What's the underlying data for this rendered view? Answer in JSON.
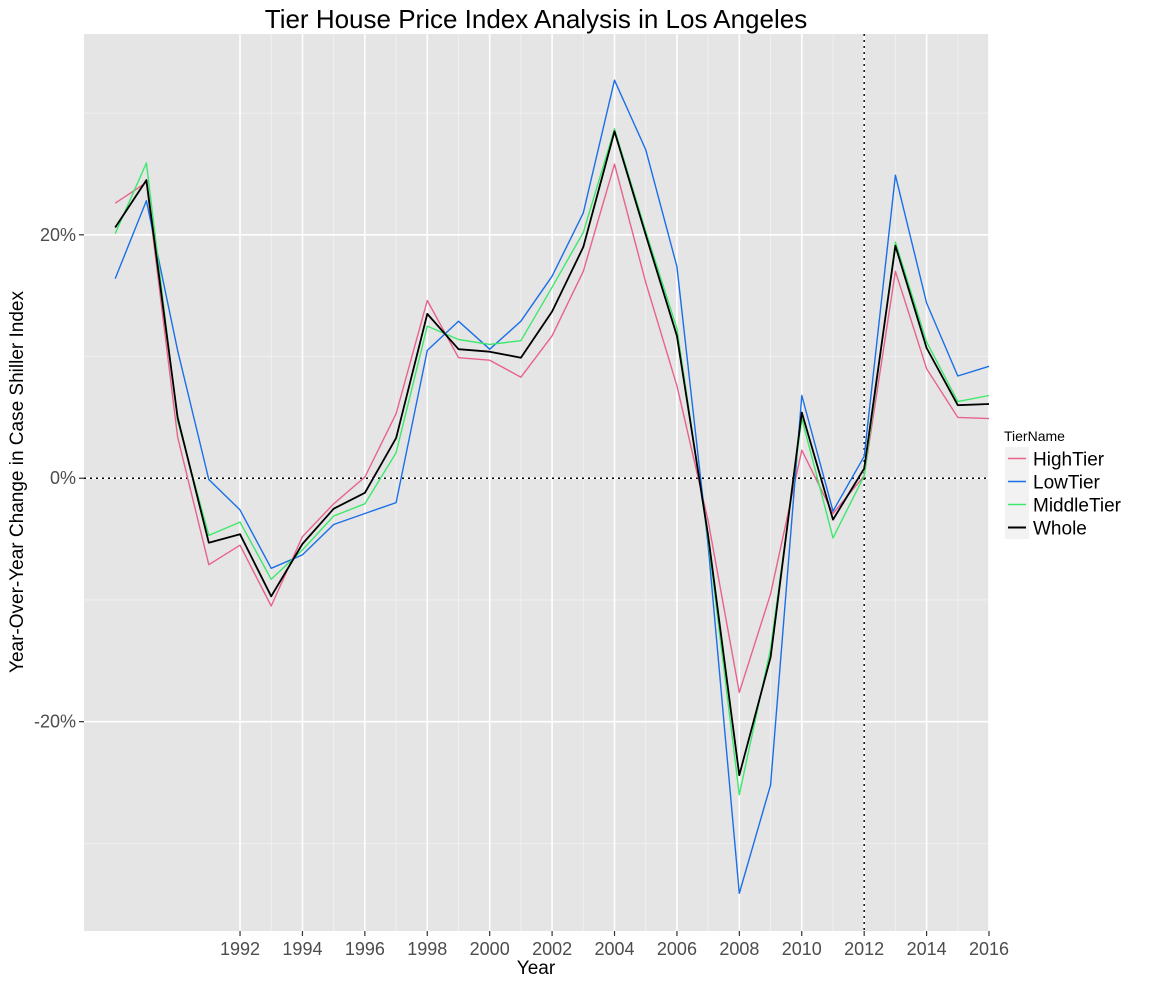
{
  "chart_data": {
    "type": "line",
    "title": "Tier House Price Index Analysis in  Los Angeles",
    "xlabel": "Year",
    "ylabel": "Year-Over-Year Change in Case Shiller Index",
    "x": [
      1988,
      1989,
      1990,
      1991,
      1992,
      1993,
      1994,
      1995,
      1996,
      1997,
      1998,
      1999,
      2000,
      2001,
      2002,
      2003,
      2004,
      2005,
      2006,
      2007,
      2008,
      2009,
      2010,
      2011,
      2012,
      2013,
      2014,
      2015,
      2016
    ],
    "xlim": [
      1987,
      2016
    ],
    "ylim": [
      -37.2,
      36.5
    ],
    "x_ticks": [
      1992,
      1994,
      1996,
      1998,
      2000,
      2002,
      2004,
      2006,
      2008,
      2010,
      2012,
      2014,
      2016
    ],
    "y_ticks": [
      -20,
      0,
      20
    ],
    "y_tick_labels": [
      "-20%",
      "0%",
      "20%"
    ],
    "reference_lines": {
      "hline_y": 0,
      "vline_x": 2012
    },
    "grid": true,
    "legend": {
      "title": "TierName",
      "position": "right"
    },
    "series": [
      {
        "name": "HighTier",
        "color": "#E8638B",
        "values": [
          22.6,
          24.3,
          3.4,
          -7.1,
          -5.5,
          -10.5,
          -4.8,
          -2.1,
          0.1,
          5.3,
          14.6,
          9.9,
          9.7,
          8.3,
          11.7,
          17.0,
          25.8,
          16.1,
          7.6,
          -3.5,
          -17.6,
          -9.5,
          2.3,
          -2.9,
          0.2,
          17.0,
          9.0,
          5.0,
          4.9
        ]
      },
      {
        "name": "LowTier",
        "color": "#1A6FE8",
        "values": [
          16.4,
          22.8,
          10.5,
          -0.1,
          -2.6,
          -7.4,
          -6.3,
          -3.8,
          -2.9,
          -2.0,
          10.5,
          12.9,
          10.6,
          12.9,
          16.6,
          21.8,
          32.7,
          27.0,
          17.4,
          -5.5,
          -34.1,
          -25.2,
          6.8,
          -2.7,
          1.8,
          24.9,
          14.4,
          8.4,
          9.2
        ]
      },
      {
        "name": "MiddleTier",
        "color": "#3DE86A",
        "values": [
          20.1,
          25.9,
          4.7,
          -4.7,
          -3.6,
          -8.3,
          -5.9,
          -3.1,
          -2.1,
          2.1,
          12.5,
          11.4,
          11.0,
          11.3,
          15.7,
          20.2,
          28.7,
          20.3,
          12.3,
          -5.0,
          -26.0,
          -14.0,
          4.9,
          -4.9,
          0.2,
          19.4,
          11.2,
          6.3,
          6.8
        ]
      },
      {
        "name": "Whole",
        "color": "#000000",
        "values": [
          20.6,
          24.5,
          5.0,
          -5.3,
          -4.6,
          -9.7,
          -5.4,
          -2.5,
          -1.2,
          3.3,
          13.5,
          10.6,
          10.4,
          9.9,
          13.7,
          19.0,
          28.5,
          20.0,
          11.7,
          -4.7,
          -24.4,
          -14.7,
          5.4,
          -3.4,
          0.8,
          19.1,
          10.7,
          6.0,
          6.1
        ]
      }
    ]
  }
}
